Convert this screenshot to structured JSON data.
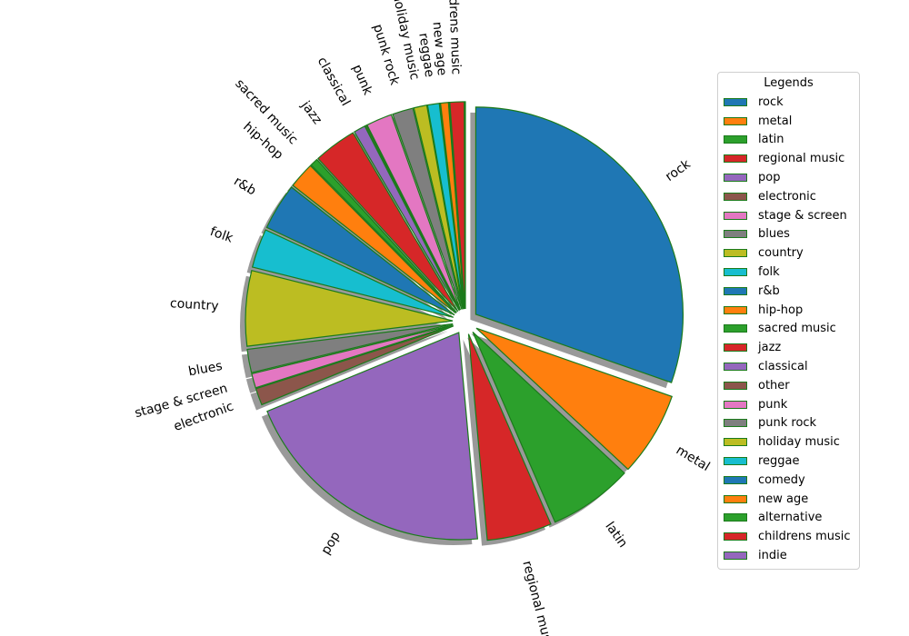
{
  "chart_data": {
    "type": "pie",
    "legend_title": "Legends",
    "legend_position": "right",
    "edge_color": "#1b7a1b",
    "shadow": true,
    "exploded": true,
    "slices": [
      {
        "label": "rock",
        "value": 30.0,
        "color": "#1f77b4"
      },
      {
        "label": "metal",
        "value": 6.5,
        "color": "#ff7f0e"
      },
      {
        "label": "latin",
        "value": 6.5,
        "color": "#2ca02c"
      },
      {
        "label": "regional music",
        "value": 5.0,
        "color": "#d62728"
      },
      {
        "label": "pop",
        "value": 20.0,
        "color": "#9467bd"
      },
      {
        "label": "electronic",
        "value": 1.3,
        "color": "#8c564b"
      },
      {
        "label": "stage & screen",
        "value": 1.1,
        "color": "#e377c2"
      },
      {
        "label": "blues",
        "value": 1.8,
        "color": "#7f7f7f"
      },
      {
        "label": "country",
        "value": 5.8,
        "color": "#bcbd22"
      },
      {
        "label": "folk",
        "value": 3.0,
        "color": "#17becf"
      },
      {
        "label": "r&b",
        "value": 3.6,
        "color": "#1f77b4"
      },
      {
        "label": "hip-hop",
        "value": 2.0,
        "color": "#ff7f0e"
      },
      {
        "label": "sacred music",
        "value": 0.6,
        "color": "#2ca02c"
      },
      {
        "label": "jazz",
        "value": 3.3,
        "color": "#d62728"
      },
      {
        "label": "classical",
        "value": 0.9,
        "color": "#9467bd"
      },
      {
        "label": "other",
        "value": 0.1,
        "color": "#8c564b"
      },
      {
        "label": "punk",
        "value": 2.0,
        "color": "#e377c2"
      },
      {
        "label": "punk rock",
        "value": 1.6,
        "color": "#7f7f7f"
      },
      {
        "label": "holiday music",
        "value": 1.0,
        "color": "#bcbd22"
      },
      {
        "label": "reggae",
        "value": 0.9,
        "color": "#17becf"
      },
      {
        "label": "comedy",
        "value": 0.05,
        "color": "#1f77b4"
      },
      {
        "label": "new age",
        "value": 0.6,
        "color": "#ff7f0e"
      },
      {
        "label": "alternative",
        "value": 0.05,
        "color": "#2ca02c"
      },
      {
        "label": "childrens music",
        "value": 1.1,
        "color": "#d62728"
      },
      {
        "label": "indie",
        "value": 0.05,
        "color": "#9467bd"
      }
    ],
    "visible_slice_labels": [
      "rock",
      "metal",
      "latin",
      "regional music",
      "pop",
      "electronic",
      "stage & screen",
      "blues",
      "country",
      "folk",
      "r&b",
      "hip-hop",
      "sacred music",
      "jazz",
      "classical",
      "punk",
      "punk rock",
      "holiday music",
      "reggae",
      "new age",
      "childrens music"
    ]
  }
}
